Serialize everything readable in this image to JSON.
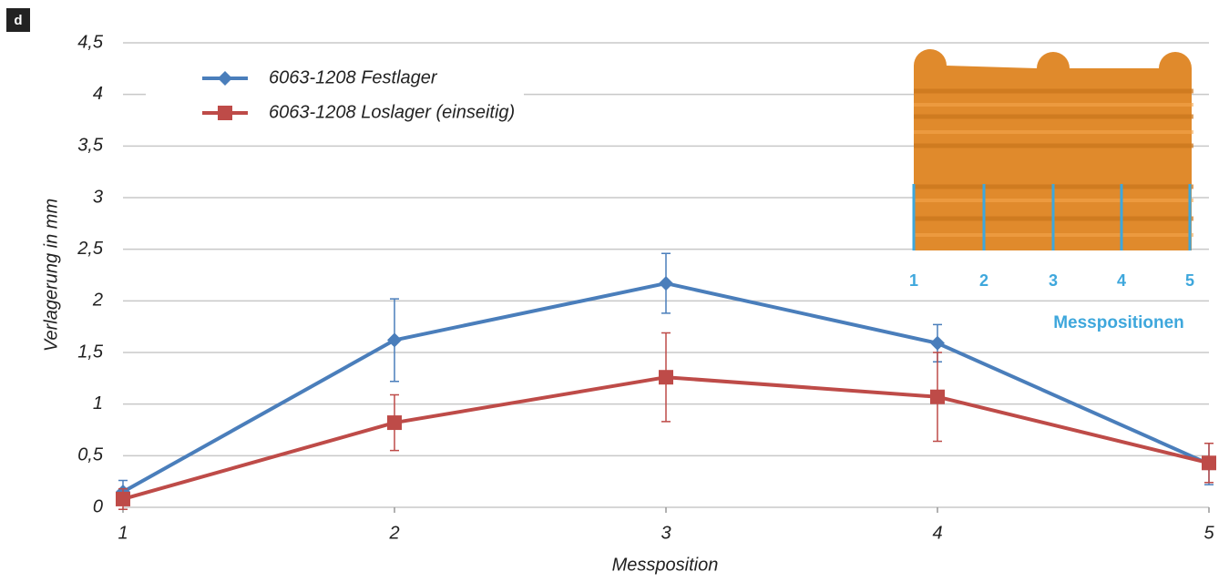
{
  "panel_label": "d",
  "chart_data": {
    "type": "line",
    "x_label": "Messposition",
    "y_label": "Verlagerung in mm",
    "x": [
      1,
      2,
      3,
      4,
      5
    ],
    "xlim": [
      1,
      5
    ],
    "xticks": [
      1,
      2,
      3,
      4,
      5
    ],
    "ylim": [
      0,
      4.5
    ],
    "yticks": [
      0,
      {
        "value": 0.5,
        "label": "0,5"
      },
      1,
      {
        "value": 1.5,
        "label": "1,5"
      },
      2,
      {
        "value": 2.5,
        "label": "2,5"
      },
      3,
      {
        "value": 3.5,
        "label": "3,5"
      },
      4,
      {
        "value": 4.5,
        "label": "4,5"
      }
    ],
    "grid": true,
    "legend": "upper left",
    "series": [
      {
        "name": "6063-1208 Festlager",
        "color": "#4a7ebb",
        "marker": "diamond",
        "values": [
          0.15,
          1.62,
          2.17,
          1.59,
          0.42
        ],
        "errors": [
          0.11,
          0.4,
          0.29,
          0.18,
          0.2
        ]
      },
      {
        "name": "6063-1208 Loslager (einseitig)",
        "color": "#be4b48",
        "marker": "square",
        "values": [
          0.08,
          0.82,
          1.26,
          1.07,
          0.43
        ],
        "errors": [
          0.1,
          0.27,
          0.43,
          0.43,
          0.19
        ]
      }
    ],
    "inset": {
      "labels": [
        "1",
        "2",
        "3",
        "4",
        "5"
      ],
      "title": "Messpositionen"
    }
  }
}
